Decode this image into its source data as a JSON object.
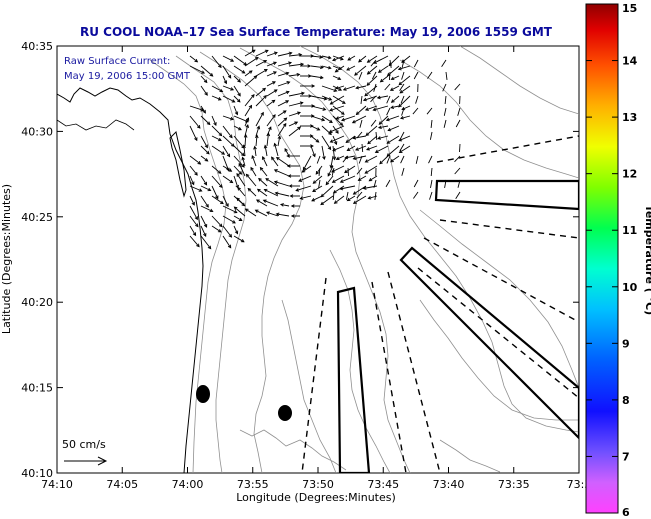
{
  "chart_data": {
    "type": "map",
    "title": "RU COOL  NOAA–17  Sea Surface Temperature:  May 19, 2006 1559 GMT",
    "xlabel": "Longitude (Degrees:Minutes)",
    "ylabel": "Latitude (Degrees:Minutes)",
    "x_ticks": [
      "74:10",
      "74:05",
      "74:00",
      "73:55",
      "73:50",
      "73:45",
      "73:40",
      "73:35",
      "73:3"
    ],
    "y_ticks": [
      "40:35",
      "40:30",
      "40:25",
      "40:20",
      "40:15",
      "40:10"
    ],
    "xlim_deg": [
      -74.1667,
      -73.5
    ],
    "ylim_deg": [
      40.1667,
      40.5833
    ],
    "annotation_lines": [
      "Raw Surface Current:",
      "May 19, 2006 15:00 GMT"
    ],
    "scale_label": "50 cm/s",
    "colorbar": {
      "label": "Temperature ( °C)",
      "ticks": [
        "15",
        "14",
        "13",
        "12",
        "11",
        "10",
        "9",
        "8",
        "7",
        "6"
      ],
      "range": [
        6,
        15
      ]
    }
  }
}
